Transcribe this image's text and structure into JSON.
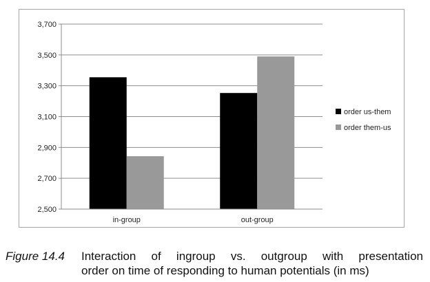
{
  "chart_data": {
    "type": "bar",
    "categories": [
      "in-group",
      "out-group"
    ],
    "series": [
      {
        "name": "order us-them",
        "values": [
          3355,
          3253
        ],
        "color": "#000000"
      },
      {
        "name": "order them-us",
        "values": [
          2843,
          3490
        ],
        "color": "#999999"
      }
    ],
    "ylim": [
      2500,
      3700
    ],
    "yticks": [
      "2,500",
      "2,700",
      "2,900",
      "3,100",
      "3,300",
      "3,500",
      "3,700"
    ],
    "ytick_values": [
      2500,
      2700,
      2900,
      3100,
      3300,
      3500,
      3700
    ],
    "grid": true,
    "legend": "right"
  },
  "caption": {
    "label": "Figure 14.4",
    "line1": "Interaction of ingroup vs. outgroup with presentation",
    "line2": "order on time of responding to human potentials (in ms)"
  }
}
